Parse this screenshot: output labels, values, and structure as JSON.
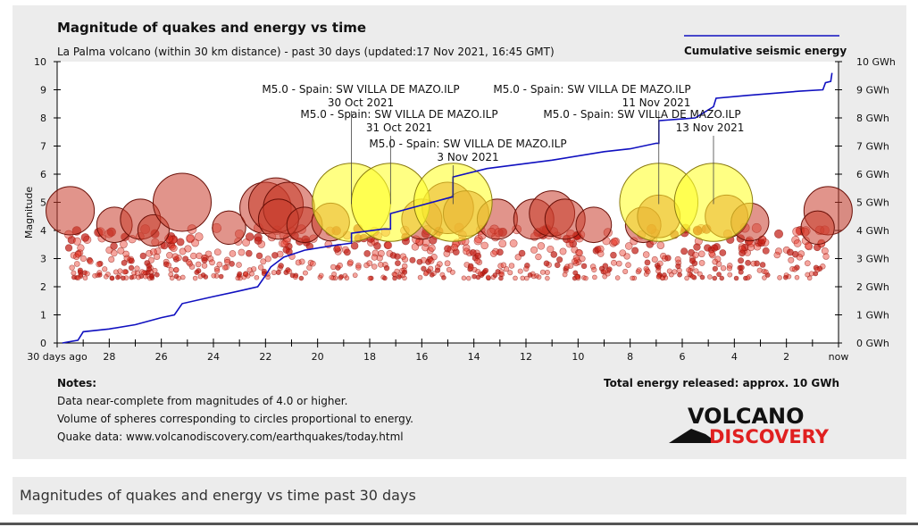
{
  "chart_data": {
    "type": "scatter",
    "title": "Magnitude of quakes and energy vs time",
    "subtitle": "La Palma volcano (within 30 km distance) - past 30 days (updated:17 Nov 2021, 16:45 GMT)",
    "ylabel": "Magnitude",
    "ylim": [
      0,
      10
    ],
    "yticks": [
      "0",
      "1",
      "2",
      "3",
      "4",
      "5",
      "6",
      "7",
      "8",
      "9",
      "10"
    ],
    "y2ticks": [
      "0 GWh",
      "1 GWh",
      "2 GWh",
      "3 GWh",
      "4 GWh",
      "5 GWh",
      "6 GWh",
      "7 GWh",
      "8 GWh",
      "9 GWh",
      "10 GWh"
    ],
    "y2lim": [
      0,
      10
    ],
    "xlim": [
      30,
      0
    ],
    "xticks": [
      {
        "value": 30,
        "label": "30 days ago"
      },
      {
        "value": 28,
        "label": "28"
      },
      {
        "value": 26,
        "label": "26"
      },
      {
        "value": 24,
        "label": "24"
      },
      {
        "value": 22,
        "label": "22"
      },
      {
        "value": 20,
        "label": "20"
      },
      {
        "value": 18,
        "label": "18"
      },
      {
        "value": 16,
        "label": "16"
      },
      {
        "value": 14,
        "label": "14"
      },
      {
        "value": 12,
        "label": "12"
      },
      {
        "value": 10,
        "label": "10"
      },
      {
        "value": 8,
        "label": "8"
      },
      {
        "value": 6,
        "label": "6"
      },
      {
        "value": 4,
        "label": "4"
      },
      {
        "value": 2,
        "label": "2"
      },
      {
        "value": 0,
        "label": "now"
      }
    ],
    "legend": {
      "label": "Cumulative seismic energy",
      "placement": "top-right",
      "color": "#1010c0"
    },
    "energy_series": {
      "name": "Cumulative seismic energy",
      "color": "#1010c0",
      "points": [
        [
          29.8,
          0
        ],
        [
          29.2,
          0.1
        ],
        [
          29.0,
          0.4
        ],
        [
          28.0,
          0.5
        ],
        [
          27.0,
          0.65
        ],
        [
          26.0,
          0.9
        ],
        [
          25.5,
          1.0
        ],
        [
          25.2,
          1.4
        ],
        [
          24.0,
          1.65
        ],
        [
          23.0,
          1.85
        ],
        [
          22.3,
          2.0
        ],
        [
          22.0,
          2.4
        ],
        [
          21.8,
          2.7
        ],
        [
          21.3,
          3.05
        ],
        [
          20.5,
          3.3
        ],
        [
          19.5,
          3.45
        ],
        [
          18.7,
          3.55
        ],
        [
          18.7,
          3.9
        ],
        [
          17.5,
          4.05
        ],
        [
          17.2,
          4.05
        ],
        [
          17.2,
          4.6
        ],
        [
          16.0,
          4.9
        ],
        [
          15.2,
          5.1
        ],
        [
          14.8,
          5.2
        ],
        [
          14.8,
          5.9
        ],
        [
          13.5,
          6.2
        ],
        [
          11.0,
          6.5
        ],
        [
          9.0,
          6.8
        ],
        [
          8.0,
          6.9
        ],
        [
          7.0,
          7.1
        ],
        [
          6.9,
          7.1
        ],
        [
          6.9,
          7.9
        ],
        [
          5.5,
          8.0
        ],
        [
          4.8,
          8.4
        ],
        [
          4.7,
          8.7
        ],
        [
          3.5,
          8.8
        ],
        [
          1.5,
          8.95
        ],
        [
          0.6,
          9.0
        ],
        [
          0.5,
          9.25
        ],
        [
          0.3,
          9.3
        ],
        [
          0.25,
          9.6
        ]
      ]
    },
    "annotations": [
      {
        "label": "M5.0 - Spain: SW VILLA DE MAZO.ILP",
        "date": "30 Oct 2021",
        "x": 18.7,
        "mag": 5.0
      },
      {
        "label": "M5.0 - Spain: SW VILLA DE MAZO.ILP",
        "date": "31 Oct 2021",
        "x": 17.2,
        "mag": 5.0
      },
      {
        "label": "M5.0 - Spain: SW VILLA DE MAZO.ILP",
        "date": "3 Nov 2021",
        "x": 14.8,
        "mag": 5.0
      },
      {
        "label": "M5.0 - Spain: SW VILLA DE MAZO.ILP",
        "date": "11 Nov 2021",
        "x": 6.9,
        "mag": 5.0
      },
      {
        "label": "M5.0 - Spain: SW VILLA DE MAZO.ILP",
        "date": "13 Nov 2021",
        "x": 4.8,
        "mag": 5.0
      }
    ],
    "large_quakes": [
      {
        "x": 29.5,
        "mag": 4.7
      },
      {
        "x": 27.8,
        "mag": 4.2
      },
      {
        "x": 26.8,
        "mag": 4.4
      },
      {
        "x": 26.3,
        "mag": 4.0
      },
      {
        "x": 25.2,
        "mag": 5.0
      },
      {
        "x": 23.4,
        "mag": 4.1
      },
      {
        "x": 22.0,
        "mag": 4.8
      },
      {
        "x": 21.6,
        "mag": 4.9
      },
      {
        "x": 21.1,
        "mag": 4.8
      },
      {
        "x": 21.5,
        "mag": 4.4
      },
      {
        "x": 20.5,
        "mag": 4.2
      },
      {
        "x": 19.5,
        "mag": 4.3
      },
      {
        "x": 16.0,
        "mag": 4.4
      },
      {
        "x": 15.0,
        "mag": 4.8
      },
      {
        "x": 14.3,
        "mag": 4.6
      },
      {
        "x": 13.1,
        "mag": 4.4
      },
      {
        "x": 11.7,
        "mag": 4.4
      },
      {
        "x": 11.0,
        "mag": 4.6
      },
      {
        "x": 10.5,
        "mag": 4.4
      },
      {
        "x": 9.4,
        "mag": 4.2
      },
      {
        "x": 7.5,
        "mag": 4.2
      },
      {
        "x": 6.9,
        "mag": 4.5
      },
      {
        "x": 4.3,
        "mag": 4.5
      },
      {
        "x": 3.4,
        "mag": 4.3
      },
      {
        "x": 0.4,
        "mag": 4.7
      },
      {
        "x": 0.8,
        "mag": 4.1
      }
    ],
    "notes_heading": "Notes:",
    "notes": [
      "Data near-complete from magnitudes of 4.0 or higher.",
      "Volume of spheres corresponding to circles proportional to energy.",
      "Quake data: www.volcanodiscovery.com/earthquakes/today.html"
    ],
    "total_energy": "Total energy released: approx. 10 GWh",
    "colors": {
      "large": "#c83c2c",
      "small": "#e03020",
      "strong": "#ffff30",
      "energy": "#1010c0"
    }
  },
  "logo": {
    "line1": "VOLCANO",
    "line2": "DISCOVERY"
  },
  "caption": "Magnitudes of quakes and energy vs time past 30 days"
}
